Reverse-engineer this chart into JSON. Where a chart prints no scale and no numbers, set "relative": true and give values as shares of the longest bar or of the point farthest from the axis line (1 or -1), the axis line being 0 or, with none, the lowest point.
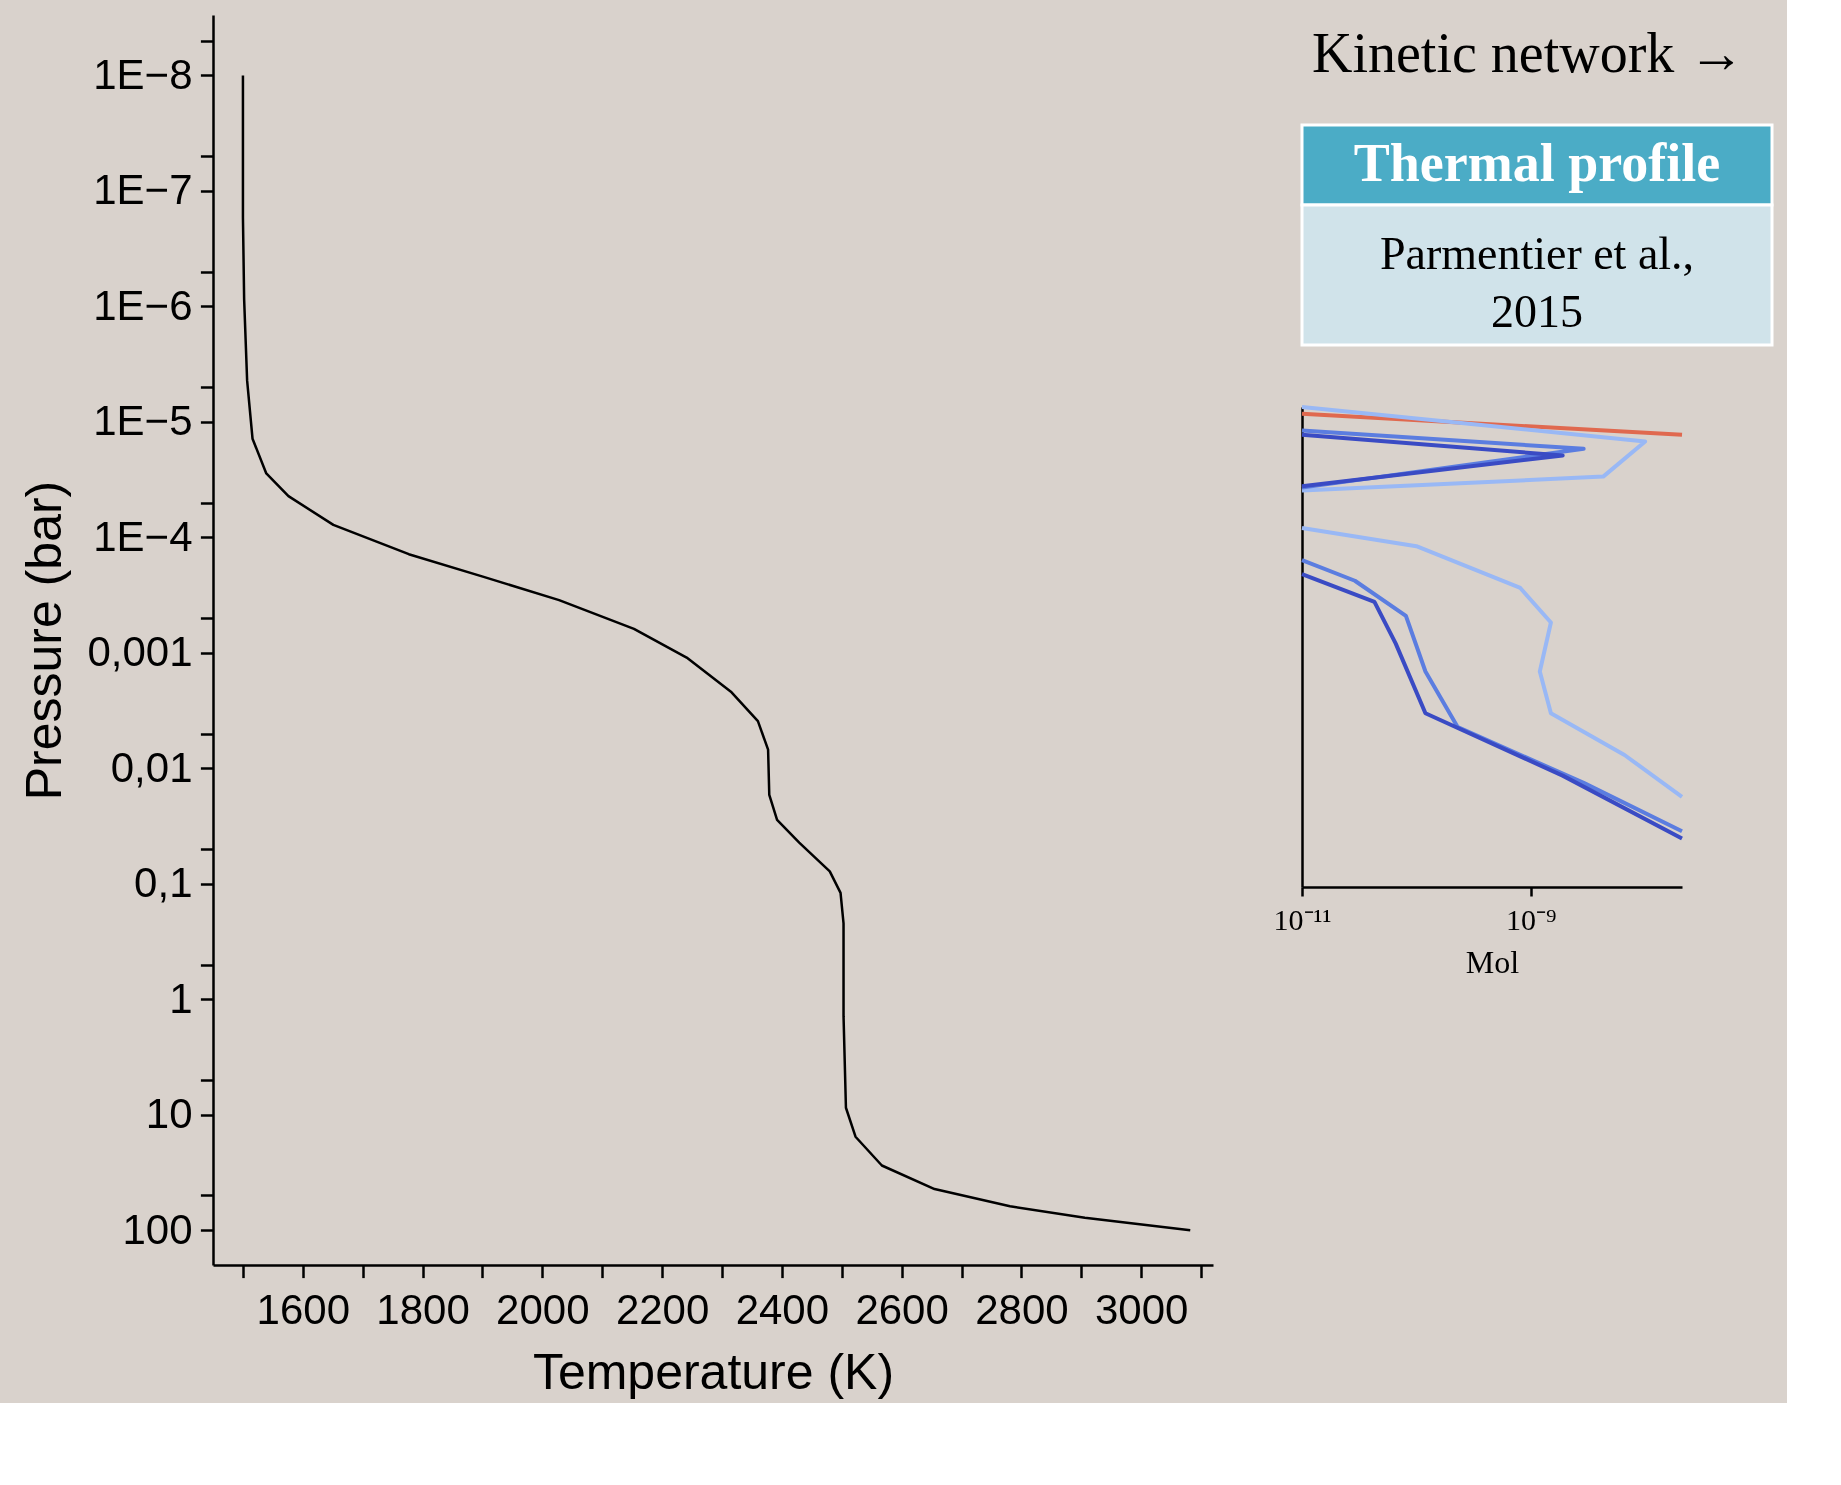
{
  "chart_data": [
    {
      "type": "line",
      "xlabel": "Temperature (K)",
      "ylabel": "Pressure (bar)",
      "log": "y",
      "grid": false,
      "marker": "none",
      "line_style": "solid",
      "xlim": [
        1450,
        3120
      ],
      "ylim": [
        200,
        3e-09
      ],
      "xticks": [
        1600,
        1800,
        2000,
        2200,
        2400,
        2600,
        2800,
        3000,
        {
          "value": 1500,
          "label": null
        },
        {
          "value": 1700,
          "label": null
        },
        {
          "value": 1900,
          "label": null
        },
        {
          "value": 2100,
          "label": null
        },
        {
          "value": 2300,
          "label": null
        },
        {
          "value": 2500,
          "label": null
        },
        {
          "value": 2700,
          "label": null
        },
        {
          "value": 2900,
          "label": null
        },
        {
          "value": 3100,
          "label": null
        }
      ],
      "yticks": [
        {
          "value": 1e-08,
          "label": "1E−8"
        },
        {
          "value": 1e-07,
          "label": "1E−7"
        },
        {
          "value": 1e-06,
          "label": "1E−6"
        },
        {
          "value": 1e-05,
          "label": "1E−5"
        },
        {
          "value": 0.0001,
          "label": "1E−4"
        },
        {
          "value": 0.001,
          "label": "0,001"
        },
        {
          "value": 0.01,
          "label": "0,01"
        },
        {
          "value": 0.1,
          "label": "0,1"
        },
        1,
        10,
        100,
        {
          "value": 5e-09,
          "label": null
        },
        {
          "value": 5e-08,
          "label": null
        },
        {
          "value": 5e-07,
          "label": null
        },
        {
          "value": 5e-06,
          "label": null
        },
        {
          "value": 5e-05,
          "label": null
        },
        {
          "value": 0.0005,
          "label": null
        },
        {
          "value": 0.005,
          "label": null
        },
        {
          "value": 0.05,
          "label": null
        },
        {
          "value": 0.5,
          "label": null
        },
        {
          "value": 5,
          "label": null
        },
        {
          "value": 50,
          "label": null
        }
      ],
      "series": [
        {
          "color": "#000000",
          "x": [
            1500,
            1500,
            1502,
            1507,
            1516,
            1539,
            1576,
            1651,
            1777,
            1902,
            2028,
            2153,
            2241,
            2316,
            2360,
            2377,
            2379,
            2392,
            2429,
            2480,
            2498,
            2503,
            2503,
            2507,
            2523,
            2567,
            2655,
            2781,
            2906,
            3082
          ],
          "values": [
            1e-08,
            1.7e-07,
            8.7e-07,
            4.4e-06,
            1.4e-05,
            2.8e-05,
            4.4e-05,
            7.8e-05,
            0.00014,
            0.00022,
            0.00035,
            0.00062,
            0.0011,
            0.0022,
            0.0039,
            0.0069,
            0.017,
            0.028,
            0.044,
            0.078,
            0.12,
            0.22,
            1.4,
            8.7,
            15.5,
            27.5,
            44,
            62,
            78,
            100
          ]
        }
      ]
    },
    {
      "type": "other",
      "title": "Kinetic network →",
      "annotations": [
        "Thermal profile",
        "Parmentier et al., 2015"
      ]
    },
    {
      "type": "line",
      "xlabel": "Mol",
      "log": "x",
      "relative": true,
      "grid": false,
      "marker": "none",
      "line_style": "solid",
      "xlim": [
        1e-11,
        2.1e-08
      ],
      "xticks": [
        {
          "value": 1e-11,
          "label": "10⁻¹¹"
        },
        {
          "value": 1e-09,
          "label": "10⁻⁹"
        }
      ],
      "series": [
        {
          "color": "#e0694f",
          "x": [
            1e-11,
            2.1e-08
          ],
          "values": [
            0.986,
            0.942
          ]
        },
        {
          "color": "#99b8f5",
          "x": [
            1e-11,
            1e-08,
            4.3e-09,
            1e-11
          ],
          "values": [
            1,
            0.928,
            0.855,
            0.826
          ]
        },
        {
          "color": "#5b7de0",
          "x": [
            1e-11,
            2.9e-09,
            1e-11
          ],
          "values": [
            0.951,
            0.913,
            0.832
          ]
        },
        {
          "color": "#3a4bc4",
          "x": [
            1e-11,
            1.9e-09,
            1e-11
          ],
          "values": [
            0.942,
            0.899,
            0.835
          ]
        },
        {
          "color": "#99b8f5",
          "x": [
            1e-11,
            1e-10,
            8.1e-10,
            1.5e-09,
            1.2e-09,
            1.5e-09,
            6.6e-09,
            2.1e-08
          ],
          "values": [
            0.748,
            0.71,
            0.623,
            0.551,
            0.449,
            0.362,
            0.275,
            0.188
          ]
        },
        {
          "color": "#5b7de0",
          "x": [
            1e-11,
            2.9e-11,
            8.1e-11,
            1.2e-10,
            2.3e-10,
            2.9e-09,
            2.1e-08
          ],
          "values": [
            0.681,
            0.638,
            0.565,
            0.449,
            0.333,
            0.217,
            0.116
          ]
        },
        {
          "color": "#3a4bc4",
          "x": [
            1e-11,
            4.3e-11,
            6.6e-11,
            1.2e-10,
            1.9e-09,
            2.1e-08
          ],
          "values": [
            0.652,
            0.594,
            0.507,
            0.362,
            0.232,
            0.101
          ]
        }
      ]
    }
  ]
}
